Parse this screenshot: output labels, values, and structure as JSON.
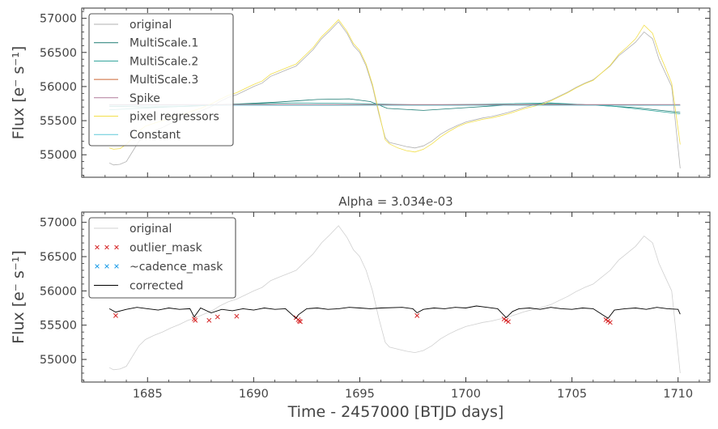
{
  "chart_data": [
    {
      "type": "line",
      "title": "",
      "xlabel": "",
      "ylabel": "Flux [e⁻ s⁻¹]",
      "xlim": [
        1681.9,
        1711.5
      ],
      "ylim": [
        54670,
        57150
      ],
      "yticks": [
        55000,
        55500,
        56000,
        56500,
        57000
      ],
      "grid": false,
      "legend_position": "top-left",
      "series": [
        {
          "name": "original",
          "color": "#b0b0b0",
          "x": [
            1683.2,
            1683.4,
            1683.7,
            1684.0,
            1684.3,
            1684.6,
            1684.9,
            1685.3,
            1685.7,
            1686.1,
            1686.5,
            1686.9,
            1687.2,
            1687.5,
            1687.8,
            1688.1,
            1688.4,
            1688.8,
            1689.2,
            1689.6,
            1690.0,
            1690.4,
            1690.8,
            1691.2,
            1691.6,
            1692.0,
            1692.4,
            1692.8,
            1693.2,
            1693.6,
            1694.0,
            1694.4,
            1694.7,
            1695.0,
            1695.3,
            1695.6,
            1695.9,
            1696.2,
            1696.4,
            1696.8,
            1697.2,
            1697.6,
            1698.0,
            1698.4,
            1698.8,
            1699.2,
            1699.6,
            1700.0,
            1700.4,
            1700.8,
            1701.2,
            1701.6,
            1702.0,
            1702.4,
            1702.8,
            1703.2,
            1703.6,
            1704.0,
            1704.4,
            1704.8,
            1705.2,
            1705.6,
            1706.0,
            1706.4,
            1706.8,
            1707.2,
            1707.6,
            1708.0,
            1708.4,
            1708.8,
            1709.1,
            1709.4,
            1709.7,
            1709.9,
            1710.1
          ],
          "y": [
            54880,
            54850,
            54860,
            54900,
            55050,
            55200,
            55290,
            55350,
            55400,
            55460,
            55510,
            55570,
            55600,
            55640,
            55680,
            55720,
            55780,
            55840,
            55880,
            55940,
            56000,
            56050,
            56150,
            56200,
            56250,
            56300,
            56420,
            56540,
            56700,
            56820,
            56950,
            56780,
            56600,
            56500,
            56300,
            56000,
            55600,
            55250,
            55180,
            55150,
            55120,
            55100,
            55130,
            55200,
            55300,
            55370,
            55430,
            55480,
            55510,
            55540,
            55560,
            55590,
            55620,
            55660,
            55700,
            55730,
            55760,
            55800,
            55860,
            55920,
            55990,
            56050,
            56100,
            56200,
            56300,
            56450,
            56550,
            56650,
            56800,
            56700,
            56400,
            56200,
            56000,
            55400,
            54800
          ]
        },
        {
          "name": "MultiScale.1",
          "color": "#1b7a72",
          "x": [
            1683.2,
            1685.0,
            1687.0,
            1689.0,
            1691.0,
            1693.0,
            1694.5,
            1695.5,
            1696.3,
            1698.0,
            1700.0,
            1702.0,
            1704.0,
            1706.0,
            1708.0,
            1710.1
          ],
          "y": [
            55710,
            55700,
            55710,
            55740,
            55770,
            55810,
            55820,
            55780,
            55680,
            55650,
            55690,
            55730,
            55750,
            55730,
            55690,
            55620
          ]
        },
        {
          "name": "MultiScale.2",
          "color": "#2aa198",
          "x": [
            1683.2,
            1686.0,
            1689.0,
            1692.0,
            1695.0,
            1698.0,
            1701.0,
            1704.0,
            1707.0,
            1710.1
          ],
          "y": [
            55660,
            55700,
            55740,
            55760,
            55750,
            55730,
            55740,
            55760,
            55710,
            55600
          ]
        },
        {
          "name": "MultiScale.3",
          "color": "#cc6633",
          "x": [
            1683.2,
            1690.0,
            1697.0,
            1704.0,
            1710.1
          ],
          "y": [
            55730,
            55735,
            55730,
            55728,
            55725
          ]
        },
        {
          "name": "Spike",
          "color": "#b07a9a",
          "x": [
            1683.2,
            1690.0,
            1697.0,
            1704.0,
            1710.1
          ],
          "y": [
            55735,
            55735,
            55735,
            55735,
            55735
          ]
        },
        {
          "name": "pixel regressors",
          "color": "#f2df4a",
          "x": [
            1683.2,
            1683.4,
            1683.7,
            1684.0,
            1684.3,
            1684.6,
            1684.9,
            1685.3,
            1685.7,
            1686.1,
            1686.5,
            1686.9,
            1687.2,
            1687.5,
            1687.8,
            1688.1,
            1688.4,
            1688.8,
            1689.2,
            1689.6,
            1690.0,
            1690.4,
            1690.8,
            1691.2,
            1691.6,
            1692.0,
            1692.4,
            1692.8,
            1693.2,
            1693.6,
            1694.0,
            1694.4,
            1694.7,
            1695.0,
            1695.3,
            1695.6,
            1695.9,
            1696.2,
            1696.4,
            1696.8,
            1697.2,
            1697.6,
            1698.0,
            1698.4,
            1698.8,
            1699.2,
            1699.6,
            1700.0,
            1700.4,
            1700.8,
            1701.2,
            1701.6,
            1702.0,
            1702.4,
            1702.8,
            1703.2,
            1703.6,
            1704.0,
            1704.4,
            1704.8,
            1705.2,
            1705.6,
            1706.0,
            1706.4,
            1706.8,
            1707.2,
            1707.6,
            1708.0,
            1708.4,
            1708.8,
            1709.1,
            1709.4,
            1709.7,
            1709.9,
            1710.1
          ],
          "y": [
            55100,
            55080,
            55090,
            55150,
            55250,
            55350,
            55420,
            55460,
            55500,
            55540,
            55580,
            55620,
            55650,
            55680,
            55720,
            55760,
            55810,
            55870,
            55910,
            55970,
            56030,
            56080,
            56180,
            56230,
            56280,
            56330,
            56450,
            56570,
            56730,
            56850,
            56980,
            56810,
            56630,
            56530,
            56330,
            56030,
            55630,
            55220,
            55160,
            55100,
            55060,
            55040,
            55080,
            55160,
            55260,
            55340,
            55410,
            55460,
            55490,
            55520,
            55540,
            55570,
            55600,
            55640,
            55680,
            55710,
            55740,
            55790,
            55850,
            55910,
            55980,
            56040,
            56090,
            56200,
            56310,
            56470,
            56580,
            56700,
            56900,
            56780,
            56500,
            56280,
            56050,
            55600,
            55150
          ]
        },
        {
          "name": "Constant",
          "color": "#5fc8d8",
          "x": [
            1683.2,
            1710.1
          ],
          "y": [
            55725,
            55725
          ]
        }
      ]
    },
    {
      "type": "line",
      "title": "Alpha = 3.034e-03",
      "xlabel": "Time - 2457000 [BTJD days]",
      "ylabel": "Flux [e⁻ s⁻¹]",
      "xlim": [
        1681.9,
        1711.5
      ],
      "ylim": [
        54670,
        57150
      ],
      "xticks": [
        1685,
        1690,
        1695,
        1700,
        1705,
        1710
      ],
      "yticks": [
        55000,
        55500,
        56000,
        56500,
        57000
      ],
      "grid": false,
      "legend_position": "top-left",
      "series": [
        {
          "name": "original",
          "color": "#d0d0d0",
          "x": [
            1683.2,
            1683.4,
            1683.7,
            1684.0,
            1684.3,
            1684.6,
            1684.9,
            1685.3,
            1685.7,
            1686.1,
            1686.5,
            1686.9,
            1687.2,
            1687.5,
            1687.8,
            1688.1,
            1688.4,
            1688.8,
            1689.2,
            1689.6,
            1690.0,
            1690.4,
            1690.8,
            1691.2,
            1691.6,
            1692.0,
            1692.4,
            1692.8,
            1693.2,
            1693.6,
            1694.0,
            1694.4,
            1694.7,
            1695.0,
            1695.3,
            1695.6,
            1695.9,
            1696.2,
            1696.4,
            1696.8,
            1697.2,
            1697.6,
            1698.0,
            1698.4,
            1698.8,
            1699.2,
            1699.6,
            1700.0,
            1700.4,
            1700.8,
            1701.2,
            1701.6,
            1702.0,
            1702.4,
            1702.8,
            1703.2,
            1703.6,
            1704.0,
            1704.4,
            1704.8,
            1705.2,
            1705.6,
            1706.0,
            1706.4,
            1706.8,
            1707.2,
            1707.6,
            1708.0,
            1708.4,
            1708.8,
            1709.1,
            1709.4,
            1709.7,
            1709.9,
            1710.1
          ],
          "y": [
            54880,
            54850,
            54860,
            54900,
            55050,
            55200,
            55290,
            55350,
            55400,
            55460,
            55510,
            55570,
            55600,
            55640,
            55680,
            55720,
            55780,
            55840,
            55880,
            55940,
            56000,
            56050,
            56150,
            56200,
            56250,
            56300,
            56420,
            56540,
            56700,
            56820,
            56950,
            56780,
            56600,
            56500,
            56300,
            56000,
            55600,
            55250,
            55180,
            55150,
            55120,
            55100,
            55130,
            55200,
            55300,
            55370,
            55430,
            55480,
            55510,
            55540,
            55560,
            55590,
            55620,
            55660,
            55700,
            55730,
            55760,
            55800,
            55860,
            55920,
            55990,
            56050,
            56100,
            56200,
            56300,
            56450,
            56550,
            56650,
            56800,
            56700,
            56400,
            56200,
            56000,
            55400,
            54800
          ]
        },
        {
          "name": "outlier_mask",
          "marker": "x",
          "color": "#d62728",
          "x": [
            1683.5,
            1687.2,
            1687.25,
            1687.9,
            1688.3,
            1689.2,
            1692.0,
            1692.1,
            1692.15,
            1692.2,
            1697.7,
            1701.8,
            1701.9,
            1702.0,
            1706.6,
            1706.7,
            1706.8
          ],
          "y": [
            55640,
            55590,
            55570,
            55570,
            55620,
            55630,
            55610,
            55580,
            55560,
            55550,
            55640,
            55590,
            55570,
            55550,
            55580,
            55560,
            55540
          ]
        },
        {
          "name": "~cadence_mask",
          "marker": "x",
          "color": "#1f9ee8",
          "x": [],
          "y": []
        },
        {
          "name": "corrected",
          "color": "#000000",
          "x": [
            1683.2,
            1683.5,
            1684.0,
            1684.5,
            1685.0,
            1685.5,
            1686.0,
            1686.5,
            1687.0,
            1687.2,
            1687.5,
            1688.0,
            1688.5,
            1689.0,
            1689.5,
            1690.0,
            1690.5,
            1691.0,
            1691.5,
            1692.0,
            1692.1,
            1692.5,
            1693.0,
            1693.5,
            1694.0,
            1694.5,
            1695.0,
            1695.5,
            1696.0,
            1697.0,
            1697.5,
            1697.7,
            1698.0,
            1698.5,
            1699.0,
            1699.5,
            1700.0,
            1700.5,
            1701.0,
            1701.5,
            1701.9,
            1702.2,
            1702.5,
            1703.0,
            1703.5,
            1704.0,
            1704.5,
            1705.0,
            1705.5,
            1706.0,
            1706.7,
            1707.0,
            1707.5,
            1708.0,
            1708.5,
            1709.0,
            1709.5,
            1710.0,
            1710.1
          ],
          "y": [
            55740,
            55690,
            55730,
            55760,
            55740,
            55720,
            55750,
            55730,
            55740,
            55620,
            55750,
            55680,
            55730,
            55710,
            55740,
            55720,
            55750,
            55730,
            55740,
            55600,
            55650,
            55740,
            55750,
            55730,
            55740,
            55760,
            55750,
            55740,
            55750,
            55760,
            55740,
            55680,
            55730,
            55750,
            55740,
            55760,
            55750,
            55780,
            55760,
            55740,
            55610,
            55700,
            55740,
            55750,
            55730,
            55760,
            55740,
            55730,
            55750,
            55740,
            55600,
            55720,
            55740,
            55750,
            55730,
            55760,
            55740,
            55730,
            55660
          ]
        }
      ]
    }
  ]
}
